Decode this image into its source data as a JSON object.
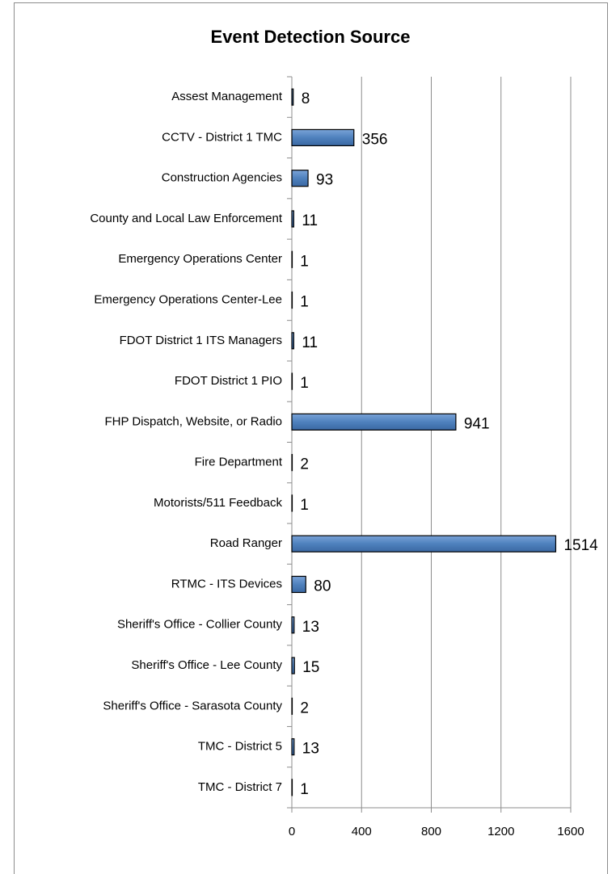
{
  "chart_data": {
    "type": "bar",
    "orientation": "horizontal",
    "title": "Event Detection Source",
    "categories": [
      "Assest Management",
      "CCTV - District 1 TMC",
      "Construction Agencies",
      "County and Local Law Enforcement",
      "Emergency Operations Center",
      "Emergency Operations Center-Lee",
      "FDOT District 1 ITS Managers",
      "FDOT District 1 PIO",
      "FHP Dispatch, Website, or Radio",
      "Fire Department",
      "Motorists/511 Feedback",
      "Road Ranger",
      "RTMC - ITS Devices",
      "Sheriff's Office - Collier County",
      "Sheriff's Office - Lee County",
      "Sheriff's Office - Sarasota County",
      "TMC - District 5",
      "TMC - District 7"
    ],
    "values": [
      8,
      356,
      93,
      11,
      1,
      1,
      11,
      1,
      941,
      2,
      1,
      1514,
      80,
      13,
      15,
      2,
      13,
      1
    ],
    "color": "#4f81bd",
    "xlim": [
      0,
      1600
    ],
    "xticks": [
      0,
      400,
      800,
      1200,
      1600
    ],
    "grid": true
  }
}
